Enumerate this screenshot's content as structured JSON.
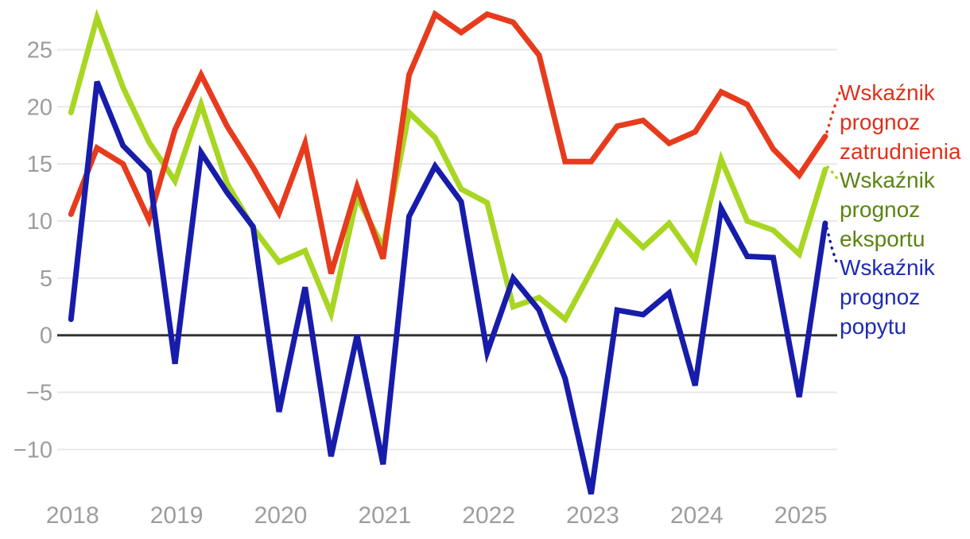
{
  "chart_data": {
    "type": "line",
    "title": "",
    "xlabel": "",
    "ylabel": "",
    "x_tick_labels": [
      "2018",
      "2019",
      "2020",
      "2021",
      "2022",
      "2023",
      "2024",
      "2025"
    ],
    "y_ticks": [
      {
        "value": 25,
        "label": "25"
      },
      {
        "value": 20,
        "label": "20"
      },
      {
        "value": 15,
        "label": "15"
      },
      {
        "value": 10,
        "label": "10"
      },
      {
        "value": 5,
        "label": "5"
      },
      {
        "value": 0,
        "label": "0"
      },
      {
        "value": -5,
        "label": "−5"
      },
      {
        "value": -10,
        "label": "−10"
      }
    ],
    "ylim": [
      -15,
      29
    ],
    "grid": "horizontal-only",
    "zero_line": true,
    "legend_position": "right",
    "frequency": "quarterly",
    "quarters": [
      "2018 Q1",
      "2018 Q2",
      "2018 Q3",
      "2018 Q4",
      "2019 Q1",
      "2019 Q2",
      "2019 Q3",
      "2019 Q4",
      "2020 Q1",
      "2020 Q2",
      "2020 Q3",
      "2020 Q4",
      "2021 Q1",
      "2021 Q2",
      "2021 Q3",
      "2021 Q4",
      "2022 Q1",
      "2022 Q2",
      "2022 Q3",
      "2022 Q4",
      "2023 Q1",
      "2023 Q2",
      "2023 Q3",
      "2023 Q4",
      "2024 Q1",
      "2024 Q2",
      "2024 Q3",
      "2024 Q4",
      "2025 Q1",
      "2025 Q2"
    ],
    "series": [
      {
        "name": "Wskaźnik prognoz zatrudnienia",
        "line_color": "#e73b1d",
        "label_color": "#e0301a",
        "values": [
          10.6,
          16.4,
          15.0,
          10.1,
          18.0,
          22.8,
          18.3,
          14.7,
          10.7,
          16.8,
          5.4,
          13.0,
          6.7,
          22.8,
          28.1,
          26.5,
          28.1,
          27.4,
          24.5,
          15.2,
          15.2,
          18.3,
          18.8,
          16.8,
          17.8,
          21.3,
          20.2,
          16.3,
          14.0,
          17.4
        ]
      },
      {
        "name": "Wskaźnik prognoz eksportu",
        "line_color": "#a8d622",
        "label_color": "#5b8412",
        "values": [
          19.5,
          27.8,
          21.7,
          16.9,
          13.5,
          20.2,
          13.3,
          9.4,
          6.4,
          7.4,
          1.9,
          12.1,
          7.7,
          19.5,
          17.3,
          12.8,
          11.6,
          2.5,
          3.3,
          1.4,
          5.6,
          9.9,
          7.7,
          9.8,
          6.6,
          15.4,
          10.0,
          9.2,
          7.1,
          14.5
        ]
      },
      {
        "name": "Wskaźnik prognoz popytu",
        "line_color": "#171cab",
        "label_color": "#1e2bb4",
        "values": [
          1.4,
          22.2,
          16.6,
          14.3,
          -2.5,
          16.0,
          12.5,
          9.5,
          -6.7,
          4.2,
          -10.6,
          0.0,
          -11.3,
          10.4,
          14.8,
          11.7,
          -1.5,
          5.0,
          2.2,
          -3.8,
          -13.9,
          2.2,
          1.8,
          3.7,
          -4.4,
          11.1,
          6.9,
          6.8,
          -5.4,
          9.8
        ]
      }
    ],
    "colors": {
      "tick_label": "#9d9d9d",
      "gridline": "#e8e8e8",
      "zero_line": "#333333",
      "background": "#ffffff"
    }
  }
}
